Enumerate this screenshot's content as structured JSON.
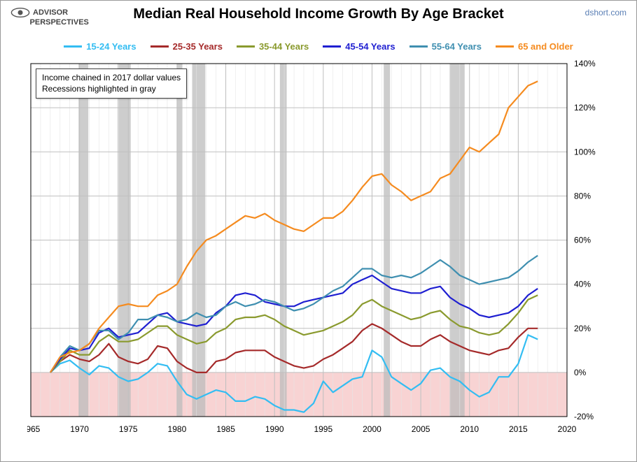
{
  "logo_lines": [
    "ADVISOR",
    "PERSPECTIVES"
  ],
  "title": "Median Real Household Income Growth By Age Bracket",
  "credit": "dshort.com",
  "note_line1": "Income chained in 2017 dollar values",
  "note_line2": "Recessions highlighted in gray",
  "chart": {
    "type": "line",
    "background": "#ffffff",
    "grid_major_color": "#bfbfbf",
    "grid_minor_color": "#e5e5e5",
    "axis_color": "#000000",
    "neg_fill": "#f4b6b6",
    "neg_fill_opacity": 0.6,
    "recession_color": "#bcbcbc",
    "recession_opacity": 0.75,
    "line_width": 2.2,
    "x_start": 1965,
    "x_end": 2020,
    "x_major_step": 5,
    "x_minor_step": 1,
    "y_min": -20,
    "y_max": 140,
    "y_major_step": 20,
    "tick_font_size": 12,
    "recessions": [
      [
        1969.9,
        1970.9
      ],
      [
        1973.9,
        1975.25
      ],
      [
        1980.0,
        1980.55
      ],
      [
        1981.55,
        1982.9
      ],
      [
        1990.55,
        1991.25
      ],
      [
        2001.2,
        2001.85
      ],
      [
        2007.95,
        2009.5
      ]
    ],
    "series": [
      {
        "label": "15-24 Years",
        "color": "#33bdf2",
        "data": [
          [
            1967,
            0
          ],
          [
            1968,
            4
          ],
          [
            1969,
            5.5
          ],
          [
            1970,
            2
          ],
          [
            1971,
            -1
          ],
          [
            1972,
            3
          ],
          [
            1973,
            2
          ],
          [
            1974,
            -2
          ],
          [
            1975,
            -4
          ],
          [
            1976,
            -3
          ],
          [
            1977,
            0
          ],
          [
            1978,
            4
          ],
          [
            1979,
            3
          ],
          [
            1980,
            -4
          ],
          [
            1981,
            -10
          ],
          [
            1982,
            -12
          ],
          [
            1983,
            -10
          ],
          [
            1984,
            -8
          ],
          [
            1985,
            -9
          ],
          [
            1986,
            -13
          ],
          [
            1987,
            -13
          ],
          [
            1988,
            -11
          ],
          [
            1989,
            -12
          ],
          [
            1990,
            -15
          ],
          [
            1991,
            -17
          ],
          [
            1992,
            -17
          ],
          [
            1993,
            -18
          ],
          [
            1994,
            -14
          ],
          [
            1995,
            -4
          ],
          [
            1996,
            -9
          ],
          [
            1997,
            -6
          ],
          [
            1998,
            -3
          ],
          [
            1999,
            -2
          ],
          [
            2000,
            10
          ],
          [
            2001,
            7
          ],
          [
            2002,
            -2
          ],
          [
            2003,
            -5
          ],
          [
            2004,
            -8
          ],
          [
            2005,
            -5
          ],
          [
            2006,
            1
          ],
          [
            2007,
            2
          ],
          [
            2008,
            -2
          ],
          [
            2009,
            -4
          ],
          [
            2010,
            -8
          ],
          [
            2011,
            -11
          ],
          [
            2012,
            -9
          ],
          [
            2013,
            -2
          ],
          [
            2014,
            -2
          ],
          [
            2015,
            4
          ],
          [
            2016,
            17
          ],
          [
            2017,
            15
          ]
        ]
      },
      {
        "label": "25-35 Years",
        "color": "#a52a2a",
        "data": [
          [
            1967,
            0
          ],
          [
            1968,
            5
          ],
          [
            1969,
            8
          ],
          [
            1970,
            6
          ],
          [
            1971,
            5
          ],
          [
            1972,
            8
          ],
          [
            1973,
            13
          ],
          [
            1974,
            7
          ],
          [
            1975,
            5
          ],
          [
            1976,
            4
          ],
          [
            1977,
            6
          ],
          [
            1978,
            12
          ],
          [
            1979,
            11
          ],
          [
            1980,
            5
          ],
          [
            1981,
            2
          ],
          [
            1982,
            0
          ],
          [
            1983,
            0
          ],
          [
            1984,
            5
          ],
          [
            1985,
            6
          ],
          [
            1986,
            9
          ],
          [
            1987,
            10
          ],
          [
            1988,
            10
          ],
          [
            1989,
            10
          ],
          [
            1990,
            7
          ],
          [
            1991,
            5
          ],
          [
            1992,
            3
          ],
          [
            1993,
            2
          ],
          [
            1994,
            3
          ],
          [
            1995,
            6
          ],
          [
            1996,
            8
          ],
          [
            1997,
            11
          ],
          [
            1998,
            14
          ],
          [
            1999,
            19
          ],
          [
            2000,
            22
          ],
          [
            2001,
            20
          ],
          [
            2002,
            17
          ],
          [
            2003,
            14
          ],
          [
            2004,
            12
          ],
          [
            2005,
            12
          ],
          [
            2006,
            15
          ],
          [
            2007,
            17
          ],
          [
            2008,
            14
          ],
          [
            2009,
            12
          ],
          [
            2010,
            10
          ],
          [
            2011,
            9
          ],
          [
            2012,
            8
          ],
          [
            2013,
            10
          ],
          [
            2014,
            11
          ],
          [
            2015,
            16
          ],
          [
            2016,
            20
          ],
          [
            2017,
            20
          ]
        ]
      },
      {
        "label": "35-44 Years",
        "color": "#8a9a2e",
        "data": [
          [
            1967,
            0
          ],
          [
            1968,
            5
          ],
          [
            1969,
            10
          ],
          [
            1970,
            8
          ],
          [
            1971,
            8
          ],
          [
            1972,
            14
          ],
          [
            1973,
            17
          ],
          [
            1974,
            14
          ],
          [
            1975,
            14
          ],
          [
            1976,
            15
          ],
          [
            1977,
            18
          ],
          [
            1978,
            21
          ],
          [
            1979,
            21
          ],
          [
            1980,
            17
          ],
          [
            1981,
            15
          ],
          [
            1982,
            13
          ],
          [
            1983,
            14
          ],
          [
            1984,
            18
          ],
          [
            1985,
            20
          ],
          [
            1986,
            24
          ],
          [
            1987,
            25
          ],
          [
            1988,
            25
          ],
          [
            1989,
            26
          ],
          [
            1990,
            24
          ],
          [
            1991,
            21
          ],
          [
            1992,
            19
          ],
          [
            1993,
            17
          ],
          [
            1994,
            18
          ],
          [
            1995,
            19
          ],
          [
            1996,
            21
          ],
          [
            1997,
            23
          ],
          [
            1998,
            26
          ],
          [
            1999,
            31
          ],
          [
            2000,
            33
          ],
          [
            2001,
            30
          ],
          [
            2002,
            28
          ],
          [
            2003,
            26
          ],
          [
            2004,
            24
          ],
          [
            2005,
            25
          ],
          [
            2006,
            27
          ],
          [
            2007,
            28
          ],
          [
            2008,
            24
          ],
          [
            2009,
            21
          ],
          [
            2010,
            20
          ],
          [
            2011,
            18
          ],
          [
            2012,
            17
          ],
          [
            2013,
            18
          ],
          [
            2014,
            22
          ],
          [
            2015,
            27
          ],
          [
            2016,
            33
          ],
          [
            2017,
            35
          ]
        ]
      },
      {
        "label": "45-54 Years",
        "color": "#1f1fd1",
        "data": [
          [
            1967,
            0
          ],
          [
            1968,
            6
          ],
          [
            1969,
            11
          ],
          [
            1970,
            10
          ],
          [
            1971,
            11
          ],
          [
            1972,
            18
          ],
          [
            1973,
            20
          ],
          [
            1974,
            16
          ],
          [
            1975,
            17
          ],
          [
            1976,
            18
          ],
          [
            1977,
            22
          ],
          [
            1978,
            26
          ],
          [
            1979,
            27
          ],
          [
            1980,
            23
          ],
          [
            1981,
            22
          ],
          [
            1982,
            21
          ],
          [
            1983,
            22
          ],
          [
            1984,
            27
          ],
          [
            1985,
            30
          ],
          [
            1986,
            35
          ],
          [
            1987,
            36
          ],
          [
            1988,
            35
          ],
          [
            1989,
            32
          ],
          [
            1990,
            31
          ],
          [
            1991,
            30
          ],
          [
            1992,
            30
          ],
          [
            1993,
            32
          ],
          [
            1994,
            33
          ],
          [
            1995,
            34
          ],
          [
            1996,
            35
          ],
          [
            1997,
            36
          ],
          [
            1998,
            40
          ],
          [
            1999,
            42
          ],
          [
            2000,
            44
          ],
          [
            2001,
            41
          ],
          [
            2002,
            38
          ],
          [
            2003,
            37
          ],
          [
            2004,
            36
          ],
          [
            2005,
            36
          ],
          [
            2006,
            38
          ],
          [
            2007,
            39
          ],
          [
            2008,
            34
          ],
          [
            2009,
            31
          ],
          [
            2010,
            29
          ],
          [
            2011,
            26
          ],
          [
            2012,
            25
          ],
          [
            2013,
            26
          ],
          [
            2014,
            27
          ],
          [
            2015,
            30
          ],
          [
            2016,
            35
          ],
          [
            2017,
            38
          ]
        ]
      },
      {
        "label": "55-64 Years",
        "color": "#3f8fb0",
        "data": [
          [
            1967,
            0
          ],
          [
            1968,
            7
          ],
          [
            1969,
            12
          ],
          [
            1970,
            10
          ],
          [
            1971,
            13
          ],
          [
            1972,
            19
          ],
          [
            1973,
            19
          ],
          [
            1974,
            15
          ],
          [
            1975,
            18
          ],
          [
            1976,
            24
          ],
          [
            1977,
            24
          ],
          [
            1978,
            26
          ],
          [
            1979,
            25
          ],
          [
            1980,
            23
          ],
          [
            1981,
            24
          ],
          [
            1982,
            27
          ],
          [
            1983,
            25
          ],
          [
            1984,
            26
          ],
          [
            1985,
            30
          ],
          [
            1986,
            32
          ],
          [
            1987,
            30
          ],
          [
            1988,
            31
          ],
          [
            1989,
            33
          ],
          [
            1990,
            32
          ],
          [
            1991,
            30
          ],
          [
            1992,
            28
          ],
          [
            1993,
            29
          ],
          [
            1994,
            31
          ],
          [
            1995,
            34
          ],
          [
            1996,
            37
          ],
          [
            1997,
            39
          ],
          [
            1998,
            43
          ],
          [
            1999,
            47
          ],
          [
            2000,
            47
          ],
          [
            2001,
            44
          ],
          [
            2002,
            43
          ],
          [
            2003,
            44
          ],
          [
            2004,
            43
          ],
          [
            2005,
            45
          ],
          [
            2006,
            48
          ],
          [
            2007,
            51
          ],
          [
            2008,
            48
          ],
          [
            2009,
            44
          ],
          [
            2010,
            42
          ],
          [
            2011,
            40
          ],
          [
            2012,
            41
          ],
          [
            2013,
            42
          ],
          [
            2014,
            43
          ],
          [
            2015,
            46
          ],
          [
            2016,
            50
          ],
          [
            2017,
            53
          ]
        ]
      },
      {
        "label": "65 and Older",
        "color": "#f58b1f",
        "data": [
          [
            1967,
            0
          ],
          [
            1968,
            7
          ],
          [
            1969,
            9
          ],
          [
            1970,
            10
          ],
          [
            1971,
            13
          ],
          [
            1972,
            20
          ],
          [
            1973,
            25
          ],
          [
            1974,
            30
          ],
          [
            1975,
            31
          ],
          [
            1976,
            30
          ],
          [
            1977,
            30
          ],
          [
            1978,
            35
          ],
          [
            1979,
            37
          ],
          [
            1980,
            40
          ],
          [
            1981,
            48
          ],
          [
            1982,
            55
          ],
          [
            1983,
            60
          ],
          [
            1984,
            62
          ],
          [
            1985,
            65
          ],
          [
            1986,
            68
          ],
          [
            1987,
            71
          ],
          [
            1988,
            70
          ],
          [
            1989,
            72
          ],
          [
            1990,
            69
          ],
          [
            1991,
            67
          ],
          [
            1992,
            65
          ],
          [
            1993,
            64
          ],
          [
            1994,
            67
          ],
          [
            1995,
            70
          ],
          [
            1996,
            70
          ],
          [
            1997,
            73
          ],
          [
            1998,
            78
          ],
          [
            1999,
            84
          ],
          [
            2000,
            89
          ],
          [
            2001,
            90
          ],
          [
            2002,
            85
          ],
          [
            2003,
            82
          ],
          [
            2004,
            78
          ],
          [
            2005,
            80
          ],
          [
            2006,
            82
          ],
          [
            2007,
            88
          ],
          [
            2008,
            90
          ],
          [
            2009,
            96
          ],
          [
            2010,
            102
          ],
          [
            2011,
            100
          ],
          [
            2012,
            104
          ],
          [
            2013,
            108
          ],
          [
            2014,
            120
          ],
          [
            2015,
            125
          ],
          [
            2016,
            130
          ],
          [
            2017,
            132
          ]
        ]
      }
    ]
  }
}
